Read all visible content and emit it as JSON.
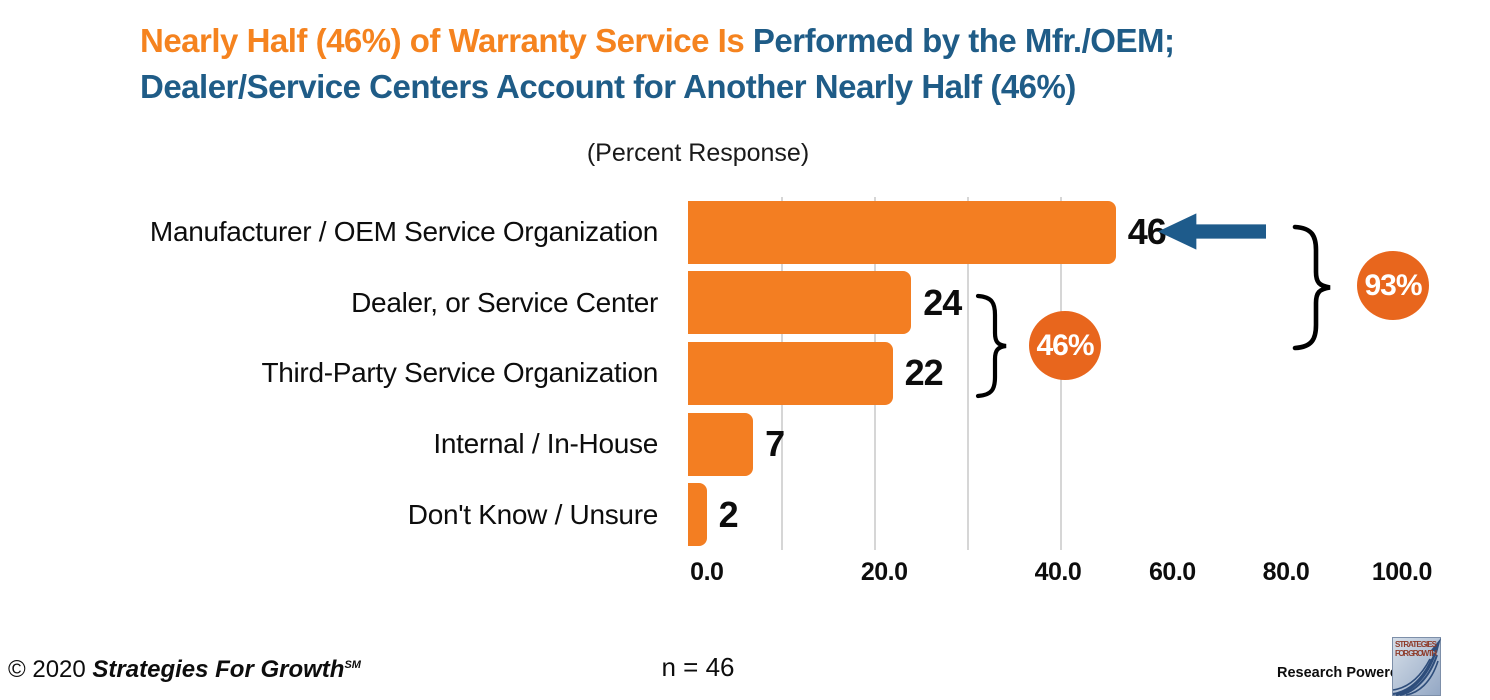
{
  "title": {
    "line1_orange": "Nearly Half (46%) of Warranty Service Is",
    "line1_blue": " Performed by the Mfr./OEM;",
    "line2_blue": "Dealer/Service Centers Account for Another Nearly Half (46%)"
  },
  "subtitle": "(Percent Response)",
  "chart_data": {
    "type": "bar",
    "orientation": "horizontal",
    "title": "(Percent Response)",
    "categories": [
      "Manufacturer / OEM Service Organization",
      "Dealer, or Service Center",
      "Third-Party Service Organization",
      "Internal / In-House",
      "Don't Know / Unsure"
    ],
    "values": [
      46,
      24,
      22,
      7,
      2
    ],
    "value_labels": [
      "46",
      "24",
      "22",
      "7",
      "2"
    ],
    "xlabel": "",
    "ylabel": "",
    "xlim": [
      0,
      100
    ],
    "x_tick_labels": [
      "0.0",
      "20.0",
      "40.0",
      "60.0",
      "80.0",
      "100.0"
    ],
    "gridlines_at_values": [
      10,
      20,
      30,
      40
    ],
    "legend": "none",
    "sample_size": "n = 46",
    "annotations": [
      {
        "type": "arrow",
        "label": "",
        "points_to": "Manufacturer / OEM Service Organization",
        "direction": "left"
      },
      {
        "type": "brace-group",
        "label": "46%",
        "covers": [
          "Dealer, or Service Center",
          "Third-Party Service Organization"
        ]
      },
      {
        "type": "brace-group",
        "label": "93%",
        "covers": [
          "Manufacturer / OEM Service Organization",
          "Dealer, or Service Center",
          "Third-Party Service Organization"
        ]
      }
    ]
  },
  "footer": {
    "copyright_prefix": "© 2020 ",
    "copyright_brand": "Strategies For Growth",
    "copyright_sm": "SM",
    "sample_label": "n = 46",
    "powered_by": "Research Powered By",
    "logo_line1": "STRATEGIES",
    "logo_line2": "FOR GROWTH"
  },
  "colors": {
    "title_orange": "#F5831F",
    "title_blue": "#1F5C87",
    "bar_orange": "#F37E22",
    "badge_orange": "#E8661D",
    "arrow_blue": "#1E5B8B",
    "gridline_gray": "#D6D6D6",
    "text_black": "#0D0D0D"
  }
}
